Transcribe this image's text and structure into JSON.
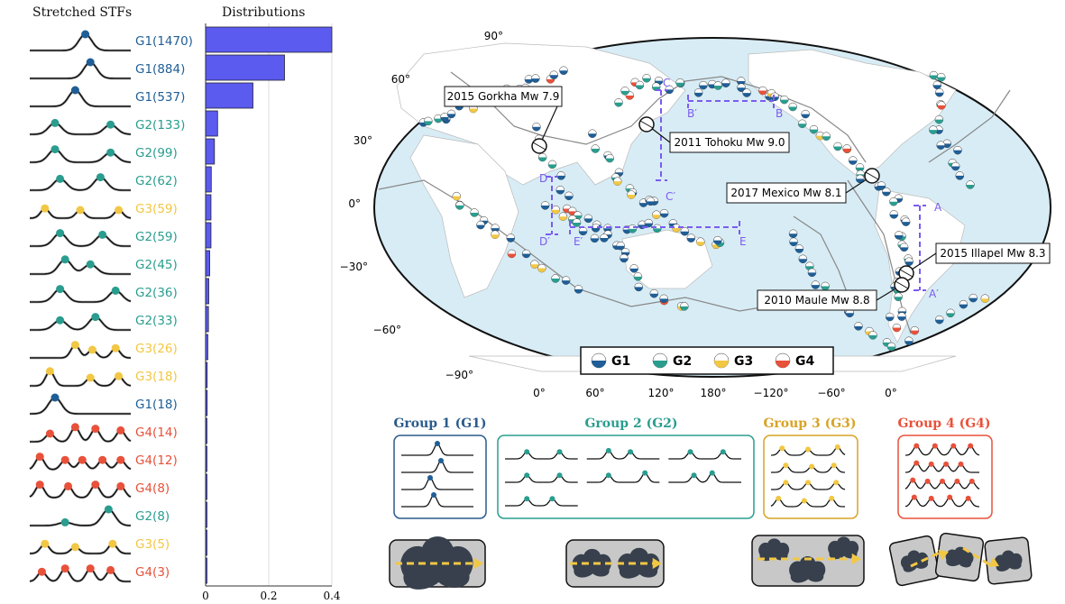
{
  "left_panel": {
    "stf_title": "Stretched STFs",
    "dist_title": "Distributions",
    "rows": [
      {
        "label": "G1(1470)",
        "group": "G1",
        "value": 0.4
      },
      {
        "label": "G1(884)",
        "group": "G1",
        "value": 0.25
      },
      {
        "label": "G1(537)",
        "group": "G1",
        "value": 0.15
      },
      {
        "label": "G2(133)",
        "group": "G2",
        "value": 0.038
      },
      {
        "label": "G2(99)",
        "group": "G2",
        "value": 0.028
      },
      {
        "label": "G2(62)",
        "group": "G2",
        "value": 0.018
      },
      {
        "label": "G3(59)",
        "group": "G3",
        "value": 0.017
      },
      {
        "label": "G2(59)",
        "group": "G2",
        "value": 0.017
      },
      {
        "label": "G2(45)",
        "group": "G2",
        "value": 0.013
      },
      {
        "label": "G2(36)",
        "group": "G2",
        "value": 0.01
      },
      {
        "label": "G2(33)",
        "group": "G2",
        "value": 0.009
      },
      {
        "label": "G3(26)",
        "group": "G3",
        "value": 0.007
      },
      {
        "label": "G3(18)",
        "group": "G3",
        "value": 0.005
      },
      {
        "label": "G1(18)",
        "group": "G1",
        "value": 0.005
      },
      {
        "label": "G4(14)",
        "group": "G4",
        "value": 0.004
      },
      {
        "label": "G4(12)",
        "group": "G4",
        "value": 0.003
      },
      {
        "label": "G4(8)",
        "group": "G4",
        "value": 0.002
      },
      {
        "label": "G2(8)",
        "group": "G2",
        "value": 0.002
      },
      {
        "label": "G3(5)",
        "group": "G3",
        "value": 0.001
      },
      {
        "label": "G4(3)",
        "group": "G4",
        "value": 0.001
      }
    ],
    "dist_axis": {
      "ticks": [
        "0",
        "0.2",
        "0.4"
      ],
      "tick_values": [
        0,
        0.2,
        0.4
      ]
    }
  },
  "colors": {
    "G1": "#1f5e96",
    "G2": "#2a9d8f",
    "G3": "#f2c744",
    "G4": "#e8513a",
    "bar": "#5b5bf0",
    "section": "#7b5cf0",
    "ocean": "#d8ecf5",
    "land": "#ffffff"
  },
  "map": {
    "lat_labels": [
      "90°",
      "60°",
      "30°",
      "0°",
      "−30°",
      "−60°",
      "−90°"
    ],
    "lon_labels": [
      "0°",
      "60°",
      "120°",
      "180°",
      "−120°",
      "−60°",
      "0°"
    ],
    "annotations": [
      {
        "text": "2015 Gorkha Mw 7.9"
      },
      {
        "text": "2011 Tohoku Mw 9.0"
      },
      {
        "text": "2017 Mexico Mw 8.1"
      },
      {
        "text": "2015 Illapel Mw 8.3"
      },
      {
        "text": "2010 Maule Mw 8.8"
      }
    ],
    "section_labels": [
      "A",
      "A′",
      "B",
      "B′",
      "C",
      "C′",
      "D",
      "D′",
      "E",
      "E′"
    ],
    "legend": [
      {
        "label": "G1"
      },
      {
        "label": "G2"
      },
      {
        "label": "G3"
      },
      {
        "label": "G4"
      }
    ]
  },
  "groups": [
    {
      "title": "Group 1 (G1)",
      "key": "G1"
    },
    {
      "title": "Group 2 (G2)",
      "key": "G2"
    },
    {
      "title": "Group 3 (G3)",
      "key": "G3"
    },
    {
      "title": "Group 4 (G4)",
      "key": "G4"
    }
  ]
}
